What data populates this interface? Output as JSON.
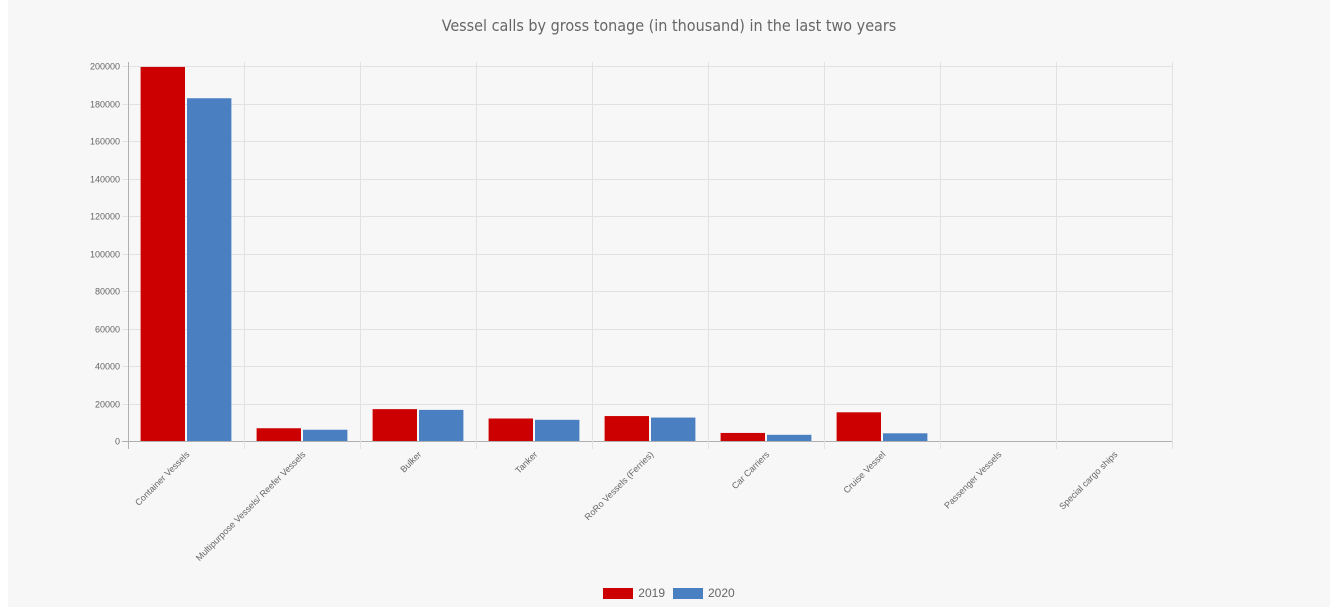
{
  "chart_data": {
    "type": "bar",
    "title": "Vessel calls by gross tonage (in thousand) in the last two years",
    "xlabel": "",
    "ylabel": "",
    "categories": [
      "Container Vessels",
      "Multipurpose Vessels/ Reefer Vessels",
      "Bulker",
      "Tanker",
      "RoRo Vessels (Ferries)",
      "Car Carriers",
      "Cruise Vessel",
      "Passenger Vessels",
      "Special cargo ships"
    ],
    "series": [
      {
        "name": "2019",
        "color": "#cc0000",
        "values": [
          199500,
          6800,
          17000,
          12000,
          13300,
          4300,
          15300,
          0,
          0
        ]
      },
      {
        "name": "2020",
        "color": "#4a7fc1",
        "values": [
          182800,
          6000,
          16600,
          11300,
          12500,
          3300,
          4100,
          0,
          0
        ]
      }
    ],
    "ylim": [
      0,
      200000
    ],
    "yticks": [
      0,
      20000,
      40000,
      60000,
      80000,
      100000,
      120000,
      140000,
      160000,
      180000,
      200000
    ],
    "grid": true,
    "legend_position": "bottom"
  }
}
